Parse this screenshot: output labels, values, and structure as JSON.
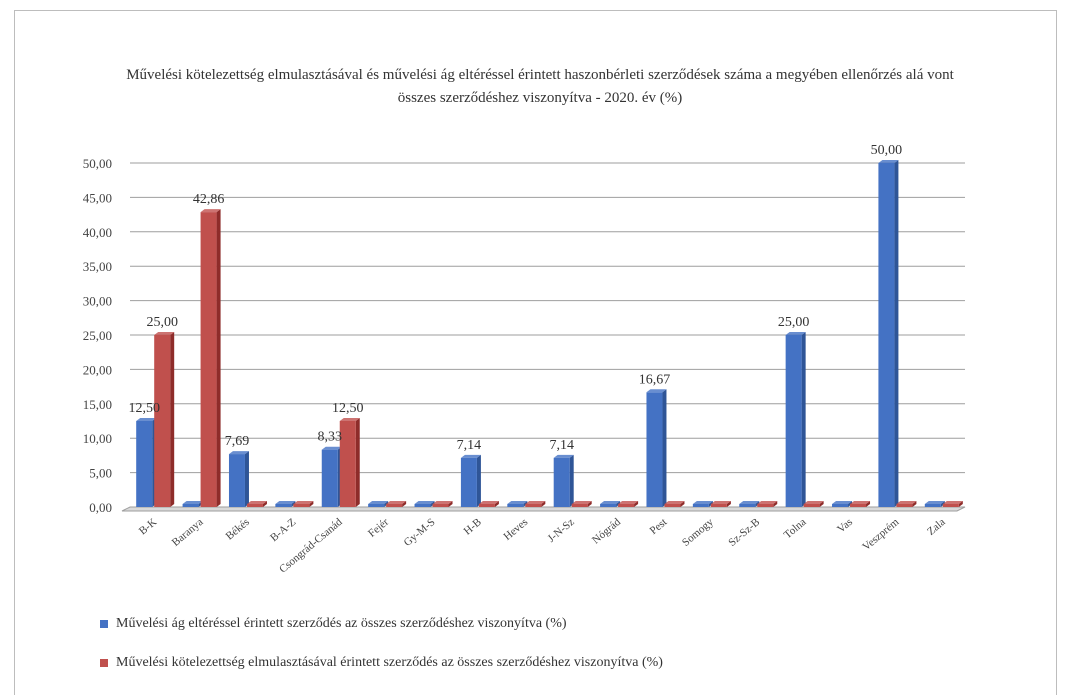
{
  "chart_data": {
    "type": "bar",
    "title": "Művelési kötelezettség elmulasztásával és művelési ág eltéréssel érintett haszonbérleti szerződések száma a megyében ellenőrzés alá vont összes szerződéshez viszonyítva - 2020. év (%)",
    "categories": [
      "B-K",
      "Baranya",
      "Békés",
      "B-A-Z",
      "Csongrád-Csanád",
      "Fejér",
      "Gy-M-S",
      "H-B",
      "Heves",
      "J-N-Sz",
      "Nógrád",
      "Pest",
      "Somogy",
      "Sz-Sz-B",
      "Tolna",
      "Vas",
      "Veszprém",
      "Zala"
    ],
    "series": [
      {
        "name": "Művelési ág eltéréssel érintett szerződés az összes szerződéshez viszonyítva (%)",
        "color": "#4472c4",
        "values": [
          12.5,
          0,
          7.69,
          0,
          8.33,
          0,
          0,
          7.14,
          0,
          7.14,
          0,
          16.67,
          0,
          0,
          25.0,
          0,
          50.0,
          0
        ],
        "labels": [
          "12,50",
          "",
          "7,69",
          "",
          "8,33",
          "",
          "",
          "7,14",
          "",
          "7,14",
          "",
          "16,67",
          "",
          "",
          "25,00",
          "",
          "50,00",
          ""
        ]
      },
      {
        "name": "Művelési kötelezettség elmulasztásával érintett szerződés az összes szerződéshez viszonyítva (%)",
        "color": "#c0504d",
        "values": [
          25.0,
          42.86,
          0,
          0,
          12.5,
          0,
          0,
          0,
          0,
          0,
          0,
          0,
          0,
          0,
          0,
          0,
          0,
          0
        ],
        "labels": [
          "25,00",
          "42,86",
          "",
          "",
          "12,50",
          "",
          "",
          "",
          "",
          "",
          "",
          "",
          "",
          "",
          "",
          "",
          "",
          ""
        ]
      }
    ],
    "ylim": [
      0,
      50
    ],
    "yticks": [
      "0,00",
      "5,00",
      "10,00",
      "15,00",
      "20,00",
      "25,00",
      "30,00",
      "35,00",
      "40,00",
      "45,00",
      "50,00"
    ],
    "grid": true,
    "legend_position": "bottom"
  }
}
